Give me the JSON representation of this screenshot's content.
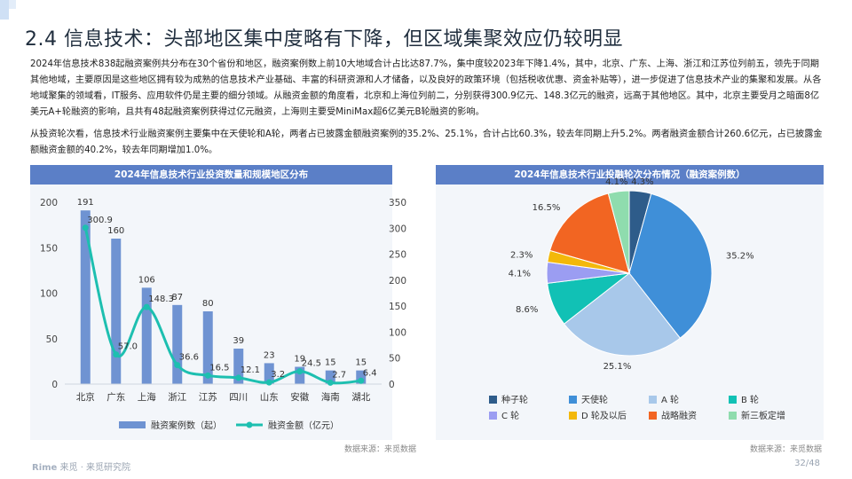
{
  "title": "2.4 信息技术：头部地区集中度略有下降，但区域集聚效应仍较明显",
  "paragraph1": "2024年信息技术838起融资案例共分布在30个省份和地区，融资案例数上前10大地域合计占比达87.7%，集中度较2023年下降1.4%，其中，北京、广东、上海、浙江和江苏位列前五，领先于同期其他地域，主要原因是这些地区拥有较为成熟的信息技术产业基础、丰富的科研资源和人才储备，以及良好的政策环境（包括税收优惠、资金补贴等），进一步促进了信息技术产业的集聚和发展。从各地域聚集的领域看，IT服务、应用软件仍是主要的细分领域。从融资金额的角度看，北京和上海位列前二，分别获得300.9亿元、148.3亿元的融资，远高于其他地区。其中，北京主要受月之暗面8亿美元A+轮融资的影响，且共有48起融资案例获得过亿元融资，上海则主要受MiniMax超6亿美元B轮融资的影响。",
  "paragraph2": "从投资轮次看，信息技术行业融资案例主要集中在天使轮和A轮，两者占已披露金额融资案例的35.2%、25.1%，合计占比60.3%，较去年同期上升5.2%。两者融资金额合计260.6亿元，占已披露金额融资金额的40.2%，较去年同期增加1.0%。",
  "left_panel_title": "2024年信息技术行业投资数量和规模地区分布",
  "right_panel_title": "2024年信息技术行业投融轮次分布情况（融资案例数）",
  "source_left": "数据来源：来觅数据",
  "source_right": "数据来源：来觅数据",
  "footer_brand_a": "Rime",
  "footer_brand_b": " 来觅 · 来觅研究院",
  "page_number": "32/48",
  "colors": {
    "bar": "#6f93d2",
    "line": "#1dbfb0",
    "header": "#5b7fc7",
    "panel": "#f3f6fa"
  },
  "chart_data": [
    {
      "type": "bar",
      "categories": [
        "北京",
        "广东",
        "上海",
        "浙江",
        "江苏",
        "四川",
        "山东",
        "安徽",
        "海南",
        "湖北"
      ],
      "series": [
        {
          "name": "融资案例数（起）",
          "type": "bar",
          "axis": "left",
          "values": [
            191,
            160,
            106,
            87,
            80,
            39,
            23,
            19,
            15,
            15
          ]
        },
        {
          "name": "融资金额（亿元）",
          "type": "line",
          "axis": "right",
          "values": [
            300.9,
            57.0,
            148.3,
            36.6,
            16.5,
            12.1,
            3.2,
            24.5,
            2.7,
            6.4
          ]
        }
      ],
      "ylim_left": [
        0,
        200
      ],
      "yticks_left": [
        0,
        50,
        100,
        150,
        200
      ],
      "ylim_right": [
        0,
        350
      ],
      "yticks_right": [
        0,
        50,
        100,
        150,
        200,
        250,
        300,
        350
      ],
      "value_labels_left": [
        "191",
        "160",
        "106",
        "87",
        "80",
        "39",
        "23",
        "19",
        "15",
        "15"
      ],
      "value_labels_right": [
        "300.9",
        "57.0",
        "148.3",
        "36.6",
        "16.5",
        "12.1",
        "3.2",
        "24.5",
        "2.7",
        "6.4"
      ],
      "legend_position": "bottom"
    },
    {
      "type": "pie",
      "labels": [
        "种子轮",
        "天使轮",
        "A 轮",
        "B 轮",
        "C 轮",
        "D 轮及以后",
        "战略融资",
        "新三板定增"
      ],
      "values": [
        4.3,
        35.2,
        25.1,
        8.6,
        4.1,
        2.3,
        16.5,
        4.1
      ],
      "value_labels": [
        "4.3%",
        "35.2%",
        "25.1%",
        "8.6%",
        "4.1%",
        "2.3%",
        "16.5%",
        "4.1%"
      ],
      "colors": [
        "#2e5c8a",
        "#3f8fd8",
        "#a8c8ea",
        "#11c1b5",
        "#9b9df2",
        "#f3b80a",
        "#f26522",
        "#8fdcae"
      ],
      "legend_position": "bottom"
    }
  ]
}
